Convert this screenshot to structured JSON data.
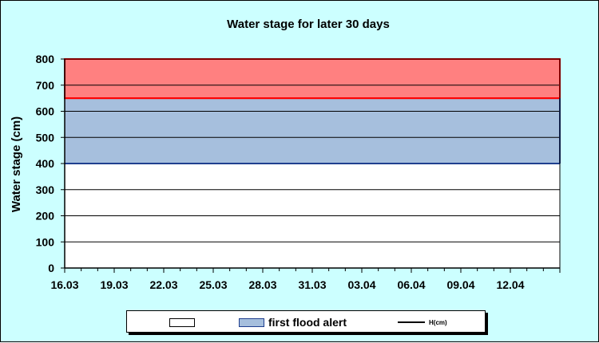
{
  "chart_data": {
    "type": "area",
    "title": "Water stage for later 30 days",
    "xlabel": "",
    "ylabel": "Water stage (cm)",
    "ylim": [
      0,
      800
    ],
    "yticks": [
      0,
      100,
      200,
      300,
      400,
      500,
      600,
      700,
      800
    ],
    "x_tick_labels": [
      "16.03",
      "19.03",
      "22.03",
      "25.03",
      "28.03",
      "31.03",
      "03.04",
      "06.04",
      "09.04",
      "12.04"
    ],
    "x_range": [
      "16.03",
      "14.04"
    ],
    "grid": "horizontal",
    "bands": [
      {
        "name": "",
        "from": 0,
        "to": 400,
        "color": "#ffffff"
      },
      {
        "name": "first flood alert",
        "from": 400,
        "to": 650,
        "color": "#a6bfdd"
      },
      {
        "name": "",
        "from": 650,
        "to": 800,
        "color": "#ff8080"
      }
    ],
    "threshold_lines": [
      {
        "value": 400,
        "color": "#1f3f8f"
      },
      {
        "value": 650,
        "color": "#ff0000"
      }
    ],
    "series": [
      {
        "name": "H(cm)",
        "values": []
      }
    ],
    "legend": {
      "position": "bottom",
      "entries": [
        {
          "label": "",
          "color": "#ffffff"
        },
        {
          "label": "first flood alert",
          "color": "#a6bfdd"
        },
        {
          "label": "H(cm)",
          "color": "#000000"
        }
      ]
    }
  }
}
